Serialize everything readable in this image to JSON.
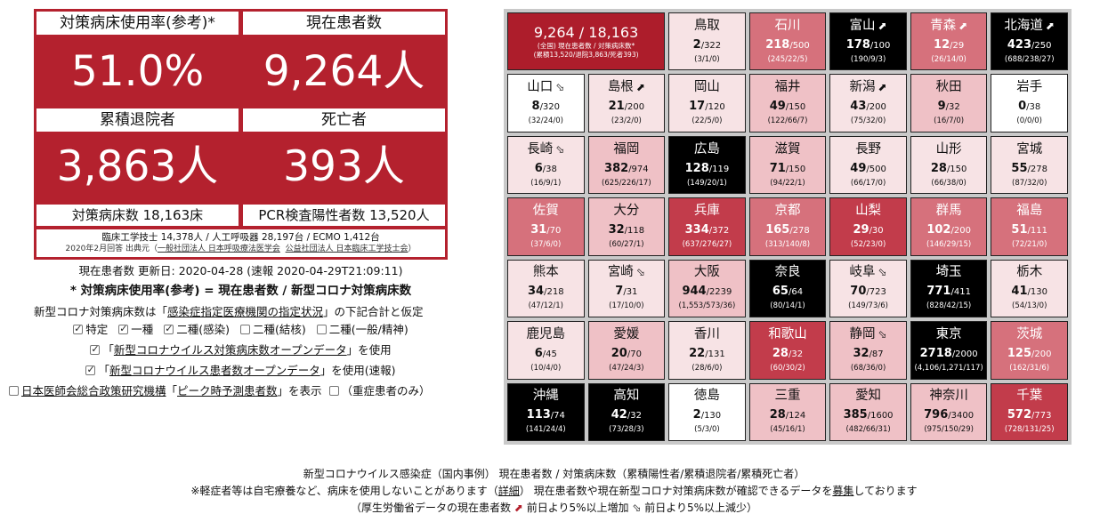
{
  "summary": {
    "bed_usage_label": "対策病床使用率(参考)*",
    "bed_usage_value": "51.0%",
    "current_patients_label": "現在患者数",
    "current_patients_value": "9,264人",
    "discharged_label": "累積退院者",
    "discharged_value": "3,863人",
    "deaths_label": "死亡者",
    "deaths_value": "393人",
    "beds_total": "対策病床数 18,163床",
    "pcr_positive": "PCR検査陽性者数 13,520人",
    "equipment": "臨床工学技士 14,378人 / 人工呼吸器 28,197台 / ECMO 1,412台",
    "equipment_source_prefix": "2020年2月回答 出典元（",
    "equipment_source_link1": "一般社団法人 日本呼吸療法医学会",
    "equipment_source_link2": "公益社団法人 日本臨床工学技士会",
    "equipment_source_suffix": "）"
  },
  "info": {
    "updated": "現在患者数 更新日: 2020-04-28 (速報 2020-04-29T21:09:11)",
    "formula": "* 対策病床使用率(参考) = 現在患者数 / 新型コロナ対策病床数",
    "basis_prefix": "新型コロナ対策病床数は「",
    "basis_link": "感染症指定医療機関の指定状況",
    "basis_suffix": "」の下記合計と仮定",
    "checkboxes": [
      {
        "label": "特定",
        "checked": true
      },
      {
        "label": "一種",
        "checked": true
      },
      {
        "label": "二種(感染)",
        "checked": true
      },
      {
        "label": "二種(結核)",
        "checked": false
      },
      {
        "label": "二種(一般/精神)",
        "checked": false
      }
    ],
    "opt1_prefix": "「",
    "opt1_link": "新型コロナウイルス対策病床数オープンデータ",
    "opt1_suffix": "」を使用",
    "opt2_prefix": "「",
    "opt2_link": "新型コロナウイルス患者数オープンデータ",
    "opt2_suffix": "」を使用(速報)",
    "opt3_link1": "日本医師会総合政策研究機構",
    "opt3_mid1": "「",
    "opt3_link2": "ピーク時予測患者数",
    "opt3_mid2": "」を表示",
    "opt3_suffix": "（重症患者のみ）"
  },
  "national": {
    "main": "9,264 / 18,163",
    "sub1": "(全国) 現在患者数 / 対策病床数*",
    "sub2": "(累積13,520/退院3,863/死者393)"
  },
  "prefectures": [
    {
      "name": "鳥取",
      "cur": "2",
      "beds": "/322",
      "sub": "(3/1/0)",
      "level": 1,
      "arrow": ""
    },
    {
      "name": "石川",
      "cur": "218",
      "beds": "/500",
      "sub": "(245/22/5)",
      "level": 3,
      "arrow": ""
    },
    {
      "name": "富山",
      "cur": "178",
      "beds": "/100",
      "sub": "(190/9/3)",
      "level": 5,
      "arrow": "⬈"
    },
    {
      "name": "青森",
      "cur": "12",
      "beds": "/29",
      "sub": "(26/14/0)",
      "level": 3,
      "arrow": "⬈"
    },
    {
      "name": "北海道",
      "cur": "423",
      "beds": "/250",
      "sub": "(688/238/27)",
      "level": 5,
      "arrow": "⬈"
    },
    {
      "name": "山口",
      "cur": "8",
      "beds": "/320",
      "sub": "(32/24/0)",
      "level": 0,
      "arrow": "⬂"
    },
    {
      "name": "島根",
      "cur": "21",
      "beds": "/200",
      "sub": "(23/2/0)",
      "level": 1,
      "arrow": "⬈"
    },
    {
      "name": "岡山",
      "cur": "17",
      "beds": "/120",
      "sub": "(22/5/0)",
      "level": 1,
      "arrow": ""
    },
    {
      "name": "福井",
      "cur": "49",
      "beds": "/150",
      "sub": "(122/66/7)",
      "level": 2,
      "arrow": ""
    },
    {
      "name": "新潟",
      "cur": "43",
      "beds": "/200",
      "sub": "(75/32/0)",
      "level": 1,
      "arrow": "⬈"
    },
    {
      "name": "秋田",
      "cur": "9",
      "beds": "/32",
      "sub": "(16/7/0)",
      "level": 2,
      "arrow": ""
    },
    {
      "name": "岩手",
      "cur": "0",
      "beds": "/38",
      "sub": "(0/0/0)",
      "level": 0,
      "arrow": ""
    },
    {
      "name": "長崎",
      "cur": "6",
      "beds": "/38",
      "sub": "(16/9/1)",
      "level": 1,
      "arrow": "⬂"
    },
    {
      "name": "福岡",
      "cur": "382",
      "beds": "/974",
      "sub": "(625/226/17)",
      "level": 2,
      "arrow": ""
    },
    {
      "name": "広島",
      "cur": "128",
      "beds": "/119",
      "sub": "(149/20/1)",
      "level": 5,
      "arrow": ""
    },
    {
      "name": "滋賀",
      "cur": "71",
      "beds": "/150",
      "sub": "(94/22/1)",
      "level": 2,
      "arrow": ""
    },
    {
      "name": "長野",
      "cur": "49",
      "beds": "/500",
      "sub": "(66/17/0)",
      "level": 1,
      "arrow": ""
    },
    {
      "name": "山形",
      "cur": "28",
      "beds": "/150",
      "sub": "(66/38/0)",
      "level": 1,
      "arrow": ""
    },
    {
      "name": "宮城",
      "cur": "55",
      "beds": "/278",
      "sub": "(87/32/0)",
      "level": 1,
      "arrow": ""
    },
    {
      "name": "佐賀",
      "cur": "31",
      "beds": "/70",
      "sub": "(37/6/0)",
      "level": 3,
      "arrow": ""
    },
    {
      "name": "大分",
      "cur": "32",
      "beds": "/118",
      "sub": "(60/27/1)",
      "level": 2,
      "arrow": ""
    },
    {
      "name": "兵庫",
      "cur": "334",
      "beds": "/372",
      "sub": "(637/276/27)",
      "level": 4,
      "arrow": ""
    },
    {
      "name": "京都",
      "cur": "165",
      "beds": "/278",
      "sub": "(313/140/8)",
      "level": 3,
      "arrow": ""
    },
    {
      "name": "山梨",
      "cur": "29",
      "beds": "/30",
      "sub": "(52/23/0)",
      "level": 4,
      "arrow": ""
    },
    {
      "name": "群馬",
      "cur": "102",
      "beds": "/200",
      "sub": "(146/29/15)",
      "level": 3,
      "arrow": ""
    },
    {
      "name": "福島",
      "cur": "51",
      "beds": "/111",
      "sub": "(72/21/0)",
      "level": 3,
      "arrow": ""
    },
    {
      "name": "熊本",
      "cur": "34",
      "beds": "/218",
      "sub": "(47/12/1)",
      "level": 1,
      "arrow": ""
    },
    {
      "name": "宮崎",
      "cur": "7",
      "beds": "/31",
      "sub": "(17/10/0)",
      "level": 1,
      "arrow": "⬂"
    },
    {
      "name": "大阪",
      "cur": "944",
      "beds": "/2239",
      "sub": "(1,553/573/36)",
      "level": 2,
      "arrow": ""
    },
    {
      "name": "奈良",
      "cur": "65",
      "beds": "/64",
      "sub": "(80/14/1)",
      "level": 5,
      "arrow": ""
    },
    {
      "name": "岐阜",
      "cur": "70",
      "beds": "/723",
      "sub": "(149/73/6)",
      "level": 1,
      "arrow": "⬂"
    },
    {
      "name": "埼玉",
      "cur": "771",
      "beds": "/411",
      "sub": "(828/42/15)",
      "level": 5,
      "arrow": ""
    },
    {
      "name": "栃木",
      "cur": "41",
      "beds": "/130",
      "sub": "(54/13/0)",
      "level": 1,
      "arrow": ""
    },
    {
      "name": "鹿児島",
      "cur": "6",
      "beds": "/45",
      "sub": "(10/4/0)",
      "level": 1,
      "arrow": ""
    },
    {
      "name": "愛媛",
      "cur": "20",
      "beds": "/70",
      "sub": "(47/24/3)",
      "level": 2,
      "arrow": ""
    },
    {
      "name": "香川",
      "cur": "22",
      "beds": "/131",
      "sub": "(28/6/0)",
      "level": 1,
      "arrow": ""
    },
    {
      "name": "和歌山",
      "cur": "28",
      "beds": "/32",
      "sub": "(60/30/2)",
      "level": 4,
      "arrow": ""
    },
    {
      "name": "静岡",
      "cur": "32",
      "beds": "/87",
      "sub": "(68/36/0)",
      "level": 2,
      "arrow": "⬂"
    },
    {
      "name": "東京",
      "cur": "2718",
      "beds": "/2000",
      "sub": "(4,106/1,271/117)",
      "level": 5,
      "arrow": ""
    },
    {
      "name": "茨城",
      "cur": "125",
      "beds": "/200",
      "sub": "(162/31/6)",
      "level": 3,
      "arrow": ""
    },
    {
      "name": "沖縄",
      "cur": "113",
      "beds": "/74",
      "sub": "(141/24/4)",
      "level": 5,
      "arrow": ""
    },
    {
      "name": "高知",
      "cur": "42",
      "beds": "/32",
      "sub": "(73/28/3)",
      "level": 5,
      "arrow": ""
    },
    {
      "name": "徳島",
      "cur": "2",
      "beds": "/130",
      "sub": "(5/3/0)",
      "level": 0,
      "arrow": ""
    },
    {
      "name": "三重",
      "cur": "28",
      "beds": "/124",
      "sub": "(45/16/1)",
      "level": 2,
      "arrow": ""
    },
    {
      "name": "愛知",
      "cur": "385",
      "beds": "/1600",
      "sub": "(482/66/31)",
      "level": 2,
      "arrow": ""
    },
    {
      "name": "神奈川",
      "cur": "796",
      "beds": "/3400",
      "sub": "(975/150/29)",
      "level": 2,
      "arrow": ""
    },
    {
      "name": "千葉",
      "cur": "572",
      "beds": "/773",
      "sub": "(728/131/25)",
      "level": 4,
      "arrow": ""
    }
  ],
  "footer": {
    "line1": "新型コロナウイルス感染症（国内事例） 現在患者数 / 対策病床数（累積陽性者/累積退院者/累積死亡者）",
    "line2_prefix": "※軽症者等は自宅療養など、病床を使用しないことがあります（",
    "line2_link1": "詳細",
    "line2_mid": "） 現在患者数や現在新型コロナ対策病床数が確認できるデータを",
    "line2_link2": "募集",
    "line2_suffix": "しております",
    "line3_prefix": "（厚生労働省データの現在患者数",
    "line3_up_icon": "arrow-up-right-icon",
    "line3_up": "前日より5%以上増加",
    "line3_down_icon": "arrow-down-right-icon",
    "line3_down": "前日より5%以上減少）"
  },
  "colors": {
    "summary_red": "#b4212e",
    "level0": "#ffffff",
    "level1": "#f7e3e5",
    "level2": "#efc1c6",
    "level3": "#d6717c",
    "level4": "#c23c4b",
    "level5": "#000000"
  }
}
